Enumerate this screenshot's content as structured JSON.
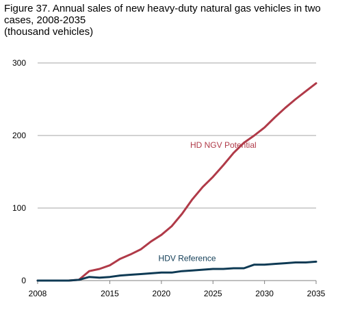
{
  "chart_data": {
    "type": "line",
    "title_lines": [
      "Figure 37. Annual sales of new heavy-duty natural gas vehicles in two",
      "cases, 2008-2035",
      "(thousand vehicles)"
    ],
    "xlim": [
      2008,
      2035
    ],
    "ylim": [
      0,
      300
    ],
    "x_ticks": [
      2008,
      2015,
      2020,
      2025,
      2030,
      2035
    ],
    "y_ticks": [
      0,
      100,
      200,
      300
    ],
    "grid": true,
    "x": [
      2008,
      2009,
      2010,
      2011,
      2012,
      2013,
      2014,
      2015,
      2016,
      2017,
      2018,
      2019,
      2020,
      2021,
      2022,
      2023,
      2024,
      2025,
      2026,
      2027,
      2028,
      2029,
      2030,
      2031,
      2032,
      2033,
      2034,
      2035
    ],
    "series": [
      {
        "name": "HD NGV Potential",
        "color": "#b03a48",
        "values": [
          0,
          0,
          0,
          0,
          1,
          13,
          16,
          21,
          30,
          36,
          43,
          54,
          63,
          75,
          92,
          112,
          129,
          143,
          159,
          176,
          190,
          200,
          211,
          225,
          238,
          250,
          261,
          272
        ]
      },
      {
        "name": "HDV Reference",
        "color": "#0e3a54",
        "values": [
          0,
          0,
          0,
          0,
          1,
          5,
          4,
          5,
          7,
          8,
          9,
          10,
          11,
          11,
          13,
          14,
          15,
          16,
          16,
          17,
          17,
          22,
          22,
          23,
          24,
          25,
          25,
          26
        ]
      }
    ]
  }
}
